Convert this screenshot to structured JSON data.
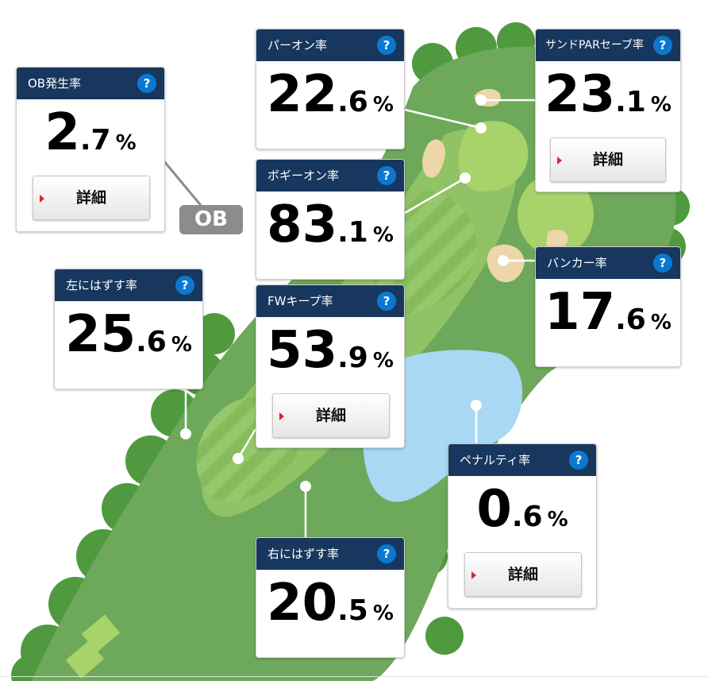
{
  "cards": {
    "ob": {
      "label": "OB発生率",
      "int": "2",
      "dec": ".7",
      "pct": "%",
      "detail": "詳細"
    },
    "par_on": {
      "label": "パーオン率",
      "int": "22",
      "dec": ".6",
      "pct": "%"
    },
    "sand_save": {
      "label": "サンドPARセーブ率",
      "int": "23",
      "dec": ".1",
      "pct": "%",
      "detail": "詳細"
    },
    "bogey_on": {
      "label": "ボギーオン率",
      "int": "83",
      "dec": ".1",
      "pct": "%"
    },
    "bunker": {
      "label": "バンカー率",
      "int": "17",
      "dec": ".6",
      "pct": "%"
    },
    "miss_left": {
      "label": "左にはずす率",
      "int": "25",
      "dec": ".6",
      "pct": "%"
    },
    "fw_keep": {
      "label": "FWキープ率",
      "int": "53",
      "dec": ".9",
      "pct": "%",
      "detail": "詳細"
    },
    "penalty": {
      "label": "ペナルティ率",
      "int": "0",
      "dec": ".6",
      "pct": "%",
      "detail": "詳細"
    },
    "miss_right": {
      "label": "右にはずす率",
      "int": "20",
      "dec": ".5",
      "pct": "%"
    }
  },
  "help_glyph": "?",
  "ob_marker": "OB",
  "colors": {
    "header": "#17375e",
    "help": "#0b78d0",
    "rough": "#6ea85a",
    "tree": "#4f9a3f",
    "fairway": "#8fc366",
    "green": "#a8d26a",
    "bunker": "#ecd6aa",
    "water": "#a8d8f3",
    "ob_marker": "#8c8c8c"
  }
}
